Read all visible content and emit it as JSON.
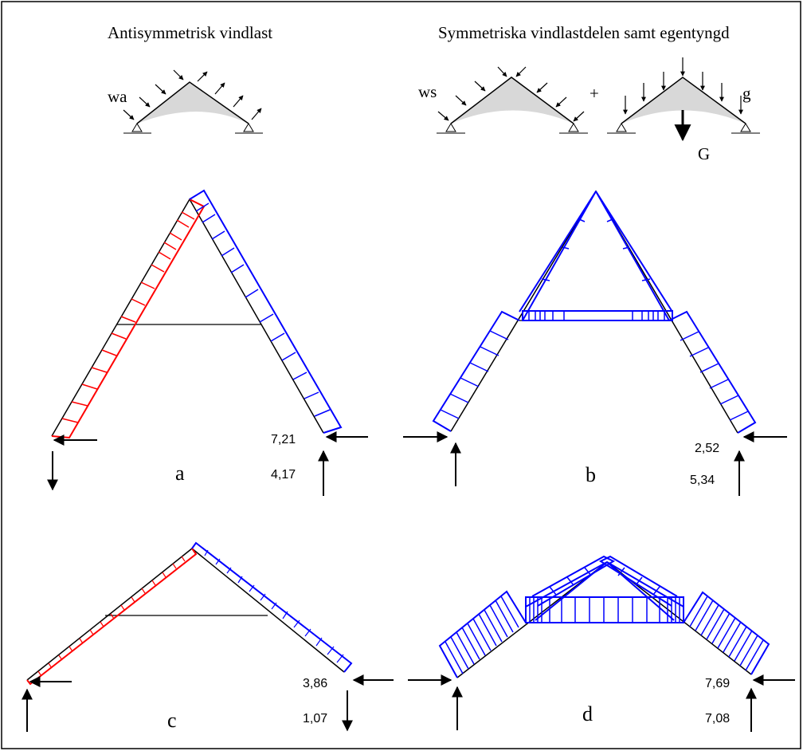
{
  "headings": {
    "left": "Antisymmetrisk vindlast",
    "right": "Symmetriska vindlastdelen samt egentyngd"
  },
  "load_labels": {
    "wa": "wa",
    "ws": "ws",
    "plus": "+",
    "g": "g",
    "G": "G"
  },
  "panels": {
    "a": {
      "label": "a",
      "horizontal_reaction": "7,21",
      "vertical_reaction": "4,17"
    },
    "b": {
      "label": "b",
      "horizontal_reaction": "2,52",
      "vertical_reaction": "5,34"
    },
    "c": {
      "label": "c",
      "horizontal_reaction": "3,86",
      "vertical_reaction": "1,07"
    },
    "d": {
      "label": "d",
      "horizontal_reaction": "7,69",
      "vertical_reaction": "7,08"
    }
  },
  "colors": {
    "frame": "#000000",
    "tension_diagram": "#ff0000",
    "compression_diagram": "#0000ff",
    "roof_fill": "#d8d8d8"
  }
}
